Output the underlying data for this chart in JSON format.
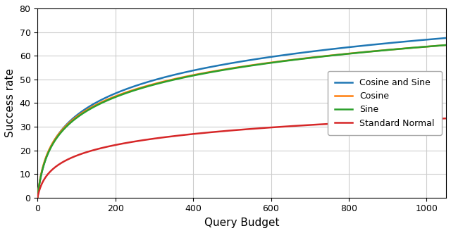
{
  "title": "",
  "xlabel": "Query Budget",
  "ylabel": "Success rate",
  "xlim": [
    0,
    1050
  ],
  "ylim": [
    0,
    80
  ],
  "yticks": [
    0,
    10,
    20,
    30,
    40,
    50,
    60,
    70,
    80
  ],
  "xticks": [
    0,
    200,
    400,
    600,
    800,
    1000
  ],
  "series": [
    {
      "label": "Cosine and Sine",
      "color": "#1f77b4",
      "plateau": 67.5,
      "k": 0.1,
      "x0": 4.0
    },
    {
      "label": "Cosine",
      "color": "#ff7f0e",
      "plateau": 64.5,
      "k": 0.12,
      "x0": 4.0
    },
    {
      "label": "Sine",
      "color": "#2ca02c",
      "plateau": 64.5,
      "k": 0.11,
      "x0": 4.5
    },
    {
      "label": "Standard Normal",
      "color": "#d62728",
      "plateau": 33.5,
      "k": 0.12,
      "x0": 3.5
    }
  ],
  "linewidth": 1.8,
  "legend_loc": "center right",
  "grid": true
}
